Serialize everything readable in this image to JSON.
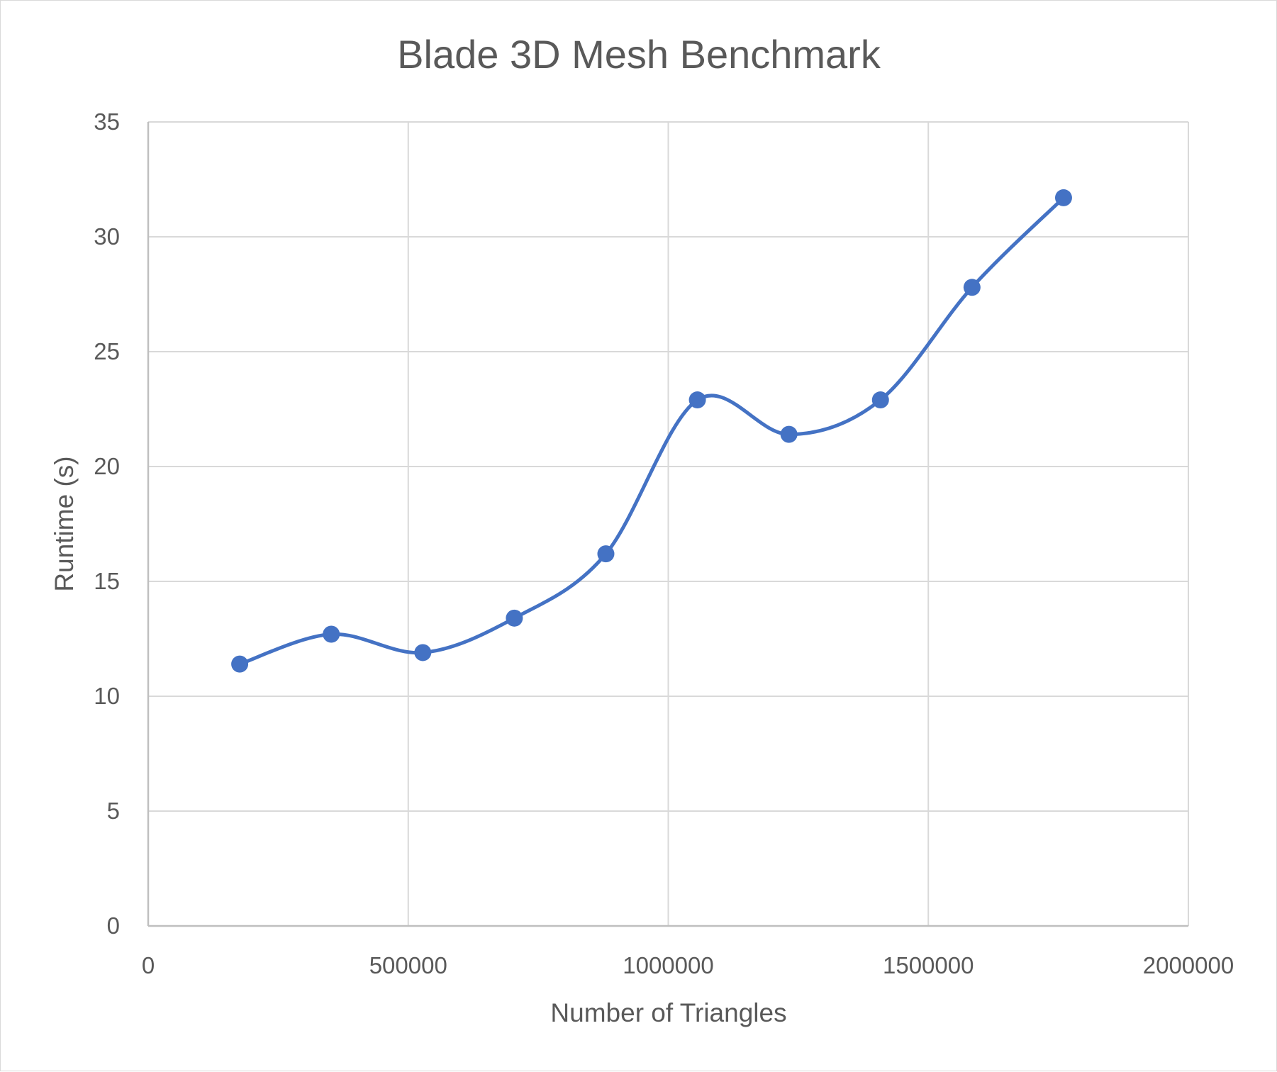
{
  "chart_data": {
    "type": "scatter",
    "title": "Blade 3D Mesh Benchmark",
    "xlabel": "Number of Triangles",
    "ylabel": "Runtime (s)",
    "xlim": [
      0,
      2000000
    ],
    "ylim": [
      0,
      35
    ],
    "xticks": [
      "0",
      "500000",
      "1000000",
      "1500000",
      "2000000"
    ],
    "yticks": [
      "0",
      "5",
      "10",
      "15",
      "20",
      "25",
      "30",
      "35"
    ],
    "grid": true,
    "legend": "none",
    "smooth_line": true,
    "series_color": "#4472c4",
    "series": [
      {
        "x": [
          176000,
          352000,
          528000,
          704000,
          880000,
          1056000,
          1232000,
          1408000,
          1584000,
          1760000
        ],
        "y": [
          11.4,
          12.7,
          11.9,
          13.4,
          16.2,
          22.9,
          21.4,
          22.9,
          27.8,
          31.7
        ]
      }
    ]
  }
}
